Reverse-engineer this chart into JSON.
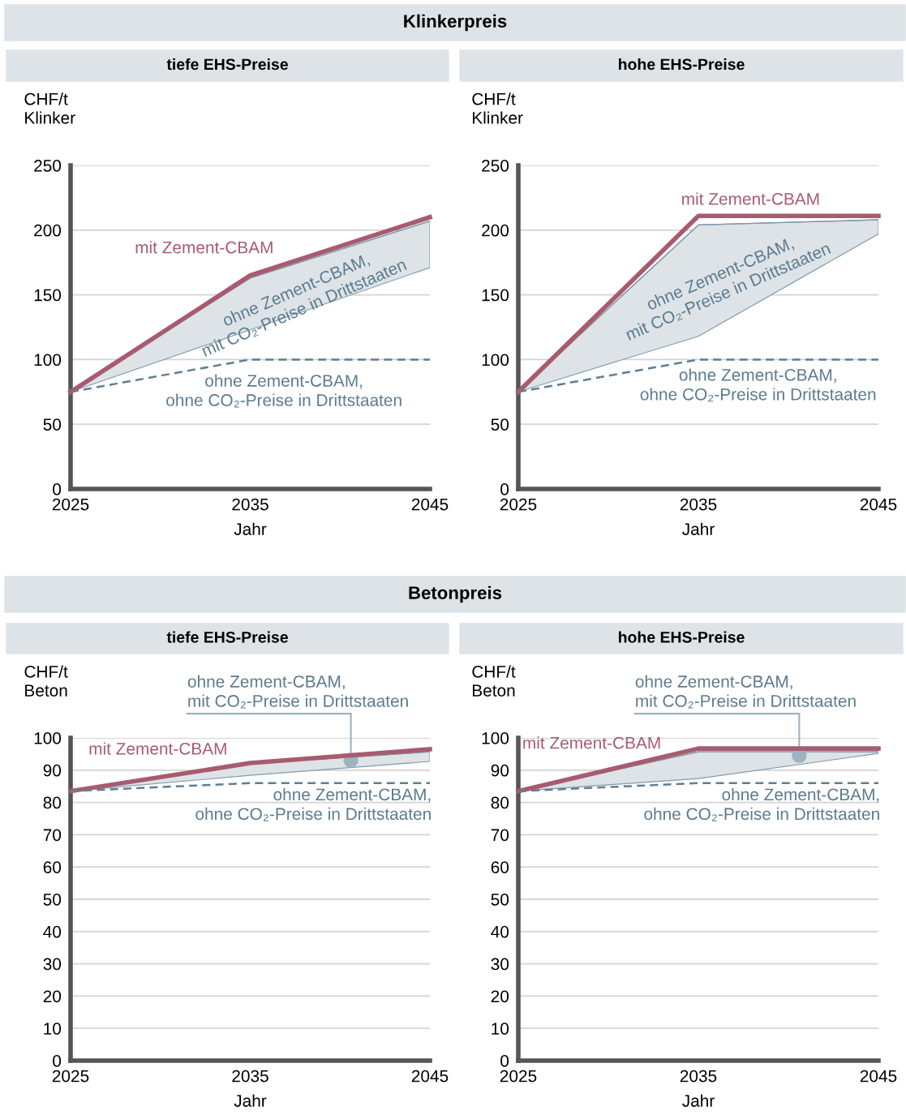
{
  "chart_data": [
    {
      "type": "line",
      "title": "tiefe EHS-Preise",
      "ylabel": "CHF/t\nKlinker",
      "xlabel": "Jahr",
      "annotations": [
        "Klinkerpreis"
      ],
      "x": [
        2025,
        2035,
        2045
      ],
      "xlim": [
        2025,
        2045
      ],
      "xticks": [
        2025,
        2035,
        2045
      ],
      "ylim": [
        0,
        250
      ],
      "yticks": [
        0,
        50,
        100,
        150,
        200,
        250
      ],
      "grid": "y",
      "line_style": "solid",
      "series": [
        {
          "name": "ohne Zement-CBAM,\nmit CO₂-Preise in Drittstaaten",
          "color": "#7f9aab",
          "values": [
            75,
            163,
            207
          ],
          "lower": [
            75,
            123,
            171
          ],
          "upper": [
            75,
            163,
            207
          ]
        },
        {
          "name": "mit Zement-CBAM",
          "color": "#a85b6f",
          "values": [
            75,
            165,
            210
          ]
        },
        {
          "name": "ohne Zement-CBAM,\nohne CO₂-Preise in Drittstaaten",
          "color": "#5f7f92",
          "line_style": "dashed",
          "values": [
            75,
            100,
            100
          ]
        }
      ]
    },
    {
      "type": "line",
      "title": "hohe EHS-Preise",
      "ylabel": "CHF/t\nKlinker",
      "xlabel": "Jahr",
      "x": [
        2025,
        2035,
        2045
      ],
      "xlim": [
        2025,
        2045
      ],
      "xticks": [
        2025,
        2035,
        2045
      ],
      "ylim": [
        0,
        250
      ],
      "yticks": [
        0,
        50,
        100,
        150,
        200,
        250
      ],
      "grid": "y",
      "line_style": "solid",
      "series": [
        {
          "name": "ohne Zement-CBAM,\nmit CO₂-Preise in Drittstaaten",
          "color": "#7f9aab",
          "values": [
            75,
            204,
            208
          ],
          "lower": [
            75,
            118,
            197
          ],
          "upper": [
            75,
            204,
            208
          ]
        },
        {
          "name": "mit Zement-CBAM",
          "color": "#a85b6f",
          "values": [
            75,
            211,
            211
          ]
        },
        {
          "name": "ohne Zement-CBAM,\nohne CO₂-Preise in Drittstaaten",
          "color": "#5f7f92",
          "line_style": "dashed",
          "values": [
            75,
            100,
            100
          ]
        }
      ]
    },
    {
      "type": "line",
      "title": "tiefe EHS-Preise",
      "ylabel": "CHF/t\nBeton",
      "xlabel": "Jahr",
      "annotations": [
        "Betonpreis"
      ],
      "x": [
        2025,
        2035,
        2045
      ],
      "xlim": [
        2025,
        2045
      ],
      "xticks": [
        2025,
        2035,
        2045
      ],
      "ylim": [
        0,
        100
      ],
      "yticks": [
        0,
        10,
        20,
        30,
        40,
        50,
        60,
        70,
        80,
        90,
        100
      ],
      "grid": "y",
      "line_style": "solid",
      "series": [
        {
          "name": "ohne Zement-CBAM,\nmit CO₂-Preise in Drittstaaten",
          "color": "#7f9aab",
          "values": [
            83.5,
            92,
            95.7
          ],
          "lower": [
            83.5,
            88.4,
            92.7
          ],
          "upper": [
            83.5,
            92,
            95.7
          ]
        },
        {
          "name": "mit Zement-CBAM",
          "color": "#a85b6f",
          "values": [
            83.5,
            92.2,
            96.5
          ]
        },
        {
          "name": "ohne Zement-CBAM,\nohne CO₂-Preise in Drittstaaten",
          "color": "#5f7f92",
          "line_style": "dashed",
          "values": [
            83.5,
            86,
            86
          ]
        }
      ]
    },
    {
      "type": "line",
      "title": "hohe EHS-Preise",
      "ylabel": "CHF/t\nBeton",
      "xlabel": "Jahr",
      "x": [
        2025,
        2035,
        2045
      ],
      "xlim": [
        2025,
        2045
      ],
      "xticks": [
        2025,
        2035,
        2045
      ],
      "ylim": [
        0,
        100
      ],
      "yticks": [
        0,
        10,
        20,
        30,
        40,
        50,
        60,
        70,
        80,
        90,
        100
      ],
      "grid": "y",
      "line_style": "solid",
      "series": [
        {
          "name": "ohne Zement-CBAM,\nmit CO₂-Preise in Drittstaaten",
          "color": "#7f9aab",
          "values": [
            83.5,
            95.7,
            95.7
          ],
          "lower": [
            83.5,
            87.4,
            95.2
          ],
          "upper": [
            83.5,
            95.7,
            95.7
          ]
        },
        {
          "name": "mit Zement-CBAM",
          "color": "#a85b6f",
          "values": [
            83.5,
            96.7,
            96.7
          ]
        },
        {
          "name": "ohne Zement-CBAM,\nohne CO₂-Preise in Drittstaaten",
          "color": "#5f7f92",
          "line_style": "dashed",
          "values": [
            83.5,
            86,
            86
          ]
        }
      ]
    }
  ]
}
